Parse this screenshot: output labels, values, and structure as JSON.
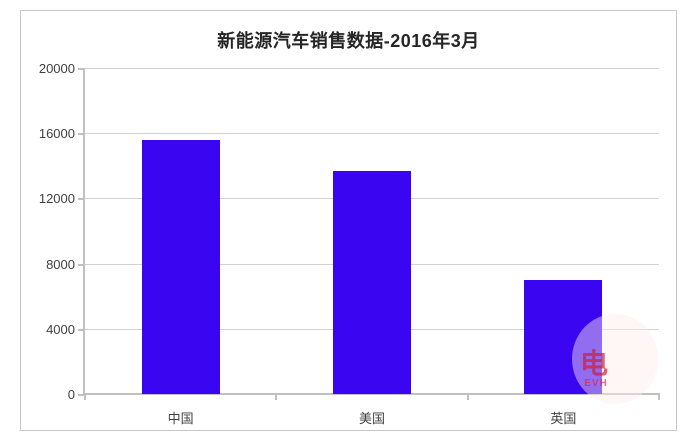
{
  "chart_data": {
    "type": "bar",
    "title": "新能源汽车销售数据-2016年3月",
    "categories": [
      "中国",
      "美国",
      "英国"
    ],
    "values": [
      15600,
      13700,
      7000
    ],
    "xlabel": "",
    "ylabel": "",
    "ylim": [
      0,
      20000
    ],
    "yticks": [
      0,
      4000,
      8000,
      12000,
      16000,
      20000
    ],
    "grid": true,
    "legend_position": "none",
    "bar_color": "#3a06f2"
  },
  "watermark": {
    "glyph": "电",
    "letters": "EVH"
  },
  "colors": {
    "border": "#c9c9c9",
    "gridline": "#d2d2d2",
    "axis": "#c0c0c0",
    "label": "#404040",
    "title": "#262626",
    "bar": "#3a06f2"
  }
}
